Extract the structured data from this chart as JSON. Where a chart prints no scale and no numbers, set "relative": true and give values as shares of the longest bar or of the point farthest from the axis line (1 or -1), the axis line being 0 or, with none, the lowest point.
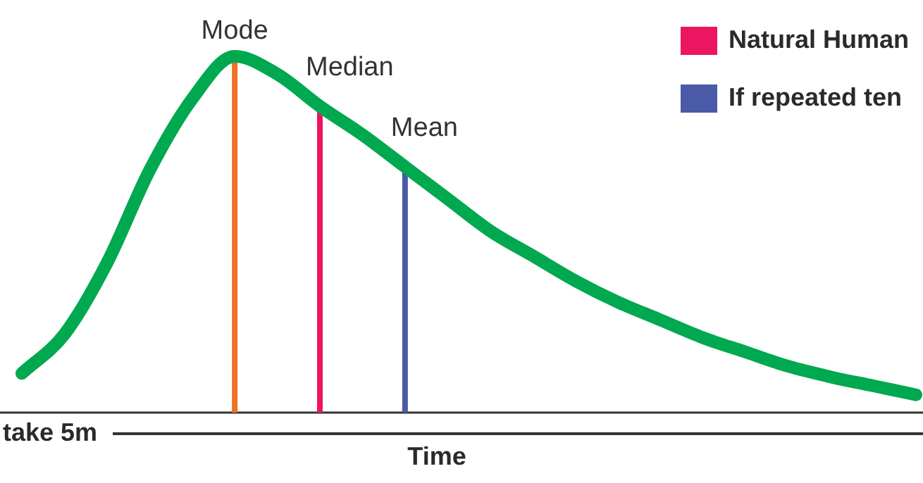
{
  "chart_data": {
    "type": "line",
    "relative": true,
    "xlabel": "Time",
    "tick_labels": false,
    "marker": "none",
    "line_style": "solid",
    "categories": [
      null,
      null,
      null,
      null,
      null,
      null,
      null,
      null,
      null,
      null,
      null,
      null,
      null,
      null,
      null,
      null,
      null,
      null,
      null,
      null,
      null,
      null
    ],
    "series": [
      {
        "color": "#00a84f",
        "values": [
          0.11,
          0.22,
          0.42,
          0.68,
          0.88,
          1,
          0.95,
          0.86,
          0.78,
          0.69,
          0.6,
          0.51,
          0.44,
          0.37,
          0.31,
          0.26,
          0.21,
          0.17,
          0.13,
          0.1,
          0.075,
          0.05
        ]
      }
    ],
    "annotations": [
      "take 5m",
      "Natural Human",
      "If repeated ten",
      "Mode",
      "Median",
      "Mean"
    ]
  }
}
